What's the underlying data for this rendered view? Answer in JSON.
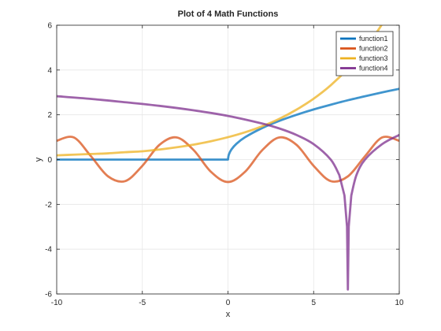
{
  "chart_data": {
    "type": "line",
    "title": "Plot of 4 Math Functions",
    "xlabel": "x",
    "ylabel": "y",
    "xlim": [
      -10,
      10
    ],
    "ylim": [
      -6,
      6
    ],
    "x_ticks": [
      -10,
      -5,
      0,
      5,
      10
    ],
    "y_ticks": [
      -6,
      -4,
      -2,
      0,
      2,
      4,
      6
    ],
    "grid": true,
    "legend_position": "top-right",
    "series": [
      {
        "name": "function1",
        "color": "#0072BD",
        "x": [
          -10,
          -8,
          -6,
          -4,
          -2,
          0,
          0.05,
          0.2,
          0.5,
          1,
          2,
          3,
          4,
          5,
          6,
          7,
          8,
          9,
          10
        ],
        "y": [
          0,
          0,
          0,
          0,
          0,
          0,
          0.22,
          0.45,
          0.71,
          1.0,
          1.41,
          1.73,
          2.0,
          2.24,
          2.45,
          2.65,
          2.83,
          3.0,
          3.16
        ]
      },
      {
        "name": "function2",
        "color": "#D95319",
        "x": [
          -10,
          -9,
          -8,
          -7,
          -6,
          -5,
          -4,
          -3,
          -2,
          -1,
          0,
          1,
          2,
          3,
          4,
          5,
          6,
          7,
          8,
          9,
          10
        ],
        "y": [
          0.84,
          0.99,
          0.15,
          -0.75,
          -0.96,
          -0.28,
          0.66,
          0.99,
          0.42,
          -0.54,
          -1.0,
          -0.54,
          0.42,
          0.99,
          0.66,
          -0.28,
          -0.96,
          -0.75,
          0.15,
          0.99,
          0.84
        ]
      },
      {
        "name": "function3",
        "color": "#EDB120",
        "x": [
          -10,
          -9,
          -8,
          -7,
          -6,
          -5,
          -4,
          -3,
          -2,
          -1,
          0,
          1,
          2,
          3,
          4,
          5,
          6,
          7,
          8,
          9,
          10
        ],
        "y": [
          0.19,
          0.22,
          0.25,
          0.28,
          0.33,
          0.37,
          0.45,
          0.55,
          0.67,
          0.82,
          1.0,
          1.22,
          1.49,
          1.82,
          2.23,
          2.72,
          3.32,
          4.06,
          4.95,
          6.05,
          7.39
        ]
      },
      {
        "name": "function4",
        "color": "#7E2F8E",
        "x": [
          -10,
          -8,
          -6,
          -4,
          -2,
          0,
          2,
          3,
          4,
          5,
          6,
          6.5,
          6.8,
          6.95,
          7.0,
          7.05,
          7.2,
          7.5,
          8,
          9,
          10
        ],
        "y": [
          2.83,
          2.71,
          2.56,
          2.4,
          2.2,
          1.95,
          1.61,
          1.39,
          1.1,
          0.69,
          0.0,
          -0.69,
          -1.6,
          -2.99,
          -5.8,
          -2.99,
          -1.6,
          -0.69,
          0.0,
          0.69,
          1.1
        ]
      }
    ]
  }
}
